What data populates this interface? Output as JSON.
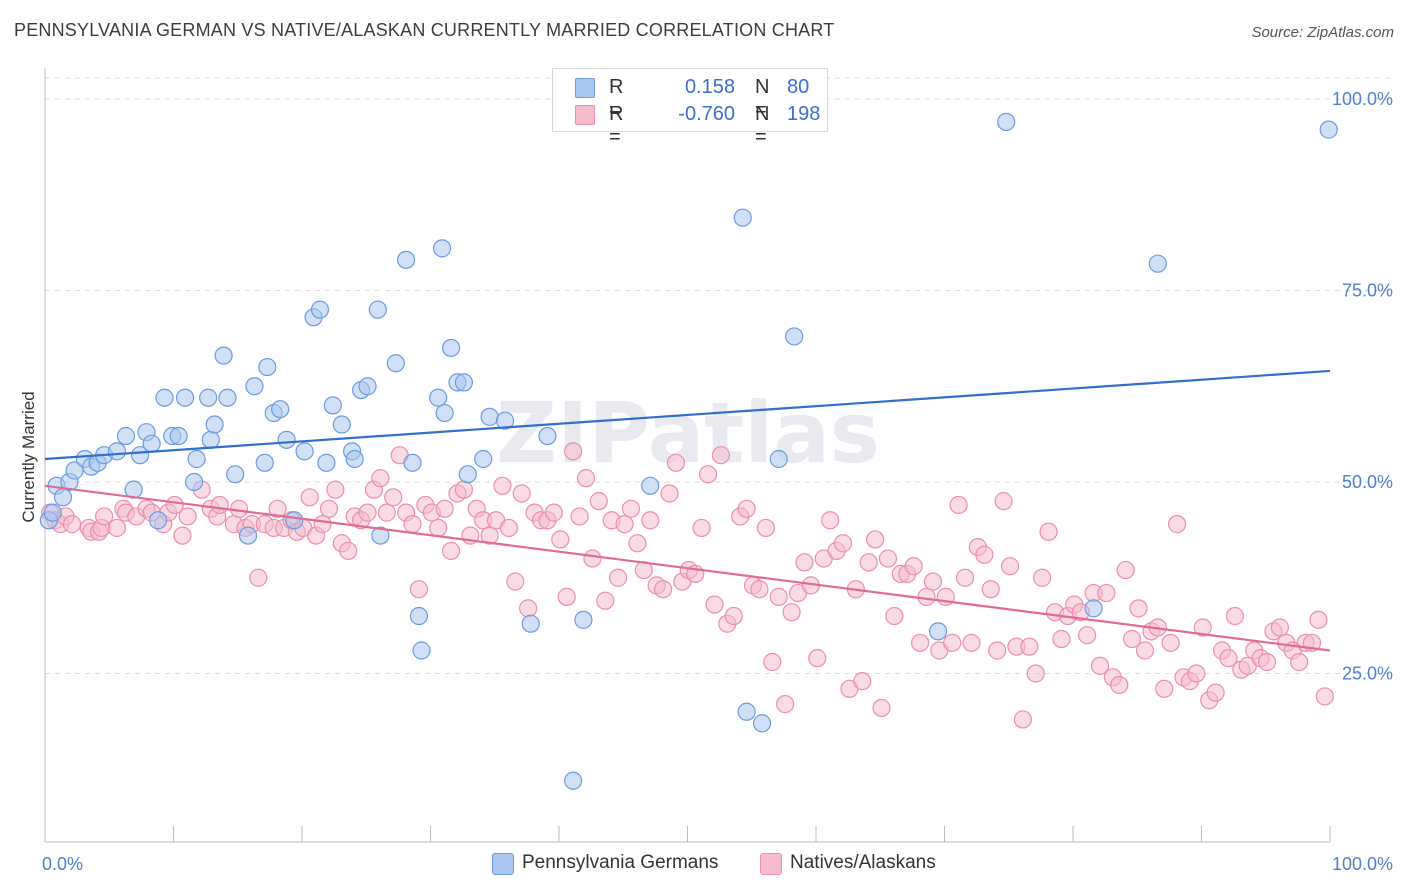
{
  "title": "PENNSYLVANIA GERMAN VS NATIVE/ALASKAN CURRENTLY MARRIED CORRELATION CHART",
  "source": "Source: ZipAtlas.com",
  "watermark": "ZIPatlas",
  "legend": {
    "series1": {
      "r_label": "R =",
      "r_value": "0.158",
      "n_label": "N =",
      "n_value": "80"
    },
    "series2": {
      "r_label": "R =",
      "r_value": "-0.760",
      "n_label": "N =",
      "n_value": "198"
    }
  },
  "bottom_legend": {
    "series1": "Pennsylvania Germans",
    "series2": "Natives/Alaskans"
  },
  "colors": {
    "blue_fill": "#aac6ef",
    "blue_stroke": "#6b9be0",
    "blue_line": "#2f6fce",
    "pink_fill": "#f6bccd",
    "pink_stroke": "#ec8fab",
    "pink_line": "#e26a94",
    "tick_text": "#4f7fcf"
  },
  "chart_data": {
    "type": "scatter",
    "title": "PENNSYLVANIA GERMAN VS NATIVE/ALASKAN CURRENTLY MARRIED CORRELATION CHART",
    "xlabel": "",
    "ylabel": "Currently Married",
    "xlim": [
      0,
      100
    ],
    "ylim": [
      3,
      103
    ],
    "x_tick_labels": [
      "0.0%",
      "100.0%"
    ],
    "y_ticks": [
      25,
      50,
      75,
      100
    ],
    "y_tick_labels": [
      "25.0%",
      "50.0%",
      "75.0%",
      "100.0%"
    ],
    "grid": "horizontal dashed",
    "series": [
      {
        "name": "Pennsylvania Germans",
        "color": "#aac6ef",
        "trend": {
          "x": [
            0,
            100
          ],
          "y": [
            53,
            64.5
          ]
        },
        "points": [
          [
            0.3,
            45
          ],
          [
            0.6,
            46
          ],
          [
            0.9,
            49.5
          ],
          [
            1.4,
            48
          ],
          [
            1.9,
            50
          ],
          [
            2.3,
            51.5
          ],
          [
            3.1,
            53
          ],
          [
            3.6,
            52
          ],
          [
            4.1,
            52.5
          ],
          [
            4.6,
            53.5
          ],
          [
            5.6,
            54
          ],
          [
            6.3,
            56
          ],
          [
            6.9,
            49
          ],
          [
            7.4,
            53.5
          ],
          [
            7.9,
            56.5
          ],
          [
            8.3,
            55
          ],
          [
            8.8,
            45
          ],
          [
            9.3,
            61
          ],
          [
            9.9,
            56
          ],
          [
            10.4,
            56
          ],
          [
            10.9,
            61
          ],
          [
            11.6,
            50
          ],
          [
            11.8,
            53
          ],
          [
            12.7,
            61
          ],
          [
            12.9,
            55.5
          ],
          [
            13.2,
            57.5
          ],
          [
            13.9,
            66.5
          ],
          [
            14.2,
            61
          ],
          [
            14.8,
            51
          ],
          [
            15.8,
            43
          ],
          [
            16.3,
            62.5
          ],
          [
            17.1,
            52.5
          ],
          [
            17.3,
            65
          ],
          [
            17.8,
            59
          ],
          [
            18.3,
            59.5
          ],
          [
            18.8,
            55.5
          ],
          [
            19.4,
            45
          ],
          [
            20.2,
            54
          ],
          [
            20.9,
            71.5
          ],
          [
            21.4,
            72.5
          ],
          [
            21.9,
            52.5
          ],
          [
            22.4,
            60
          ],
          [
            23.1,
            57.5
          ],
          [
            23.9,
            54
          ],
          [
            24.1,
            53
          ],
          [
            24.6,
            62
          ],
          [
            25.1,
            62.5
          ],
          [
            25.9,
            72.5
          ],
          [
            26.1,
            43
          ],
          [
            27.3,
            65.5
          ],
          [
            28.1,
            79
          ],
          [
            28.6,
            52.5
          ],
          [
            29.1,
            32.5
          ],
          [
            29.3,
            28
          ],
          [
            30.6,
            61
          ],
          [
            30.9,
            80.5
          ],
          [
            31.1,
            59
          ],
          [
            31.6,
            67.5
          ],
          [
            32.1,
            63
          ],
          [
            32.6,
            63
          ],
          [
            32.9,
            51
          ],
          [
            34.1,
            53
          ],
          [
            34.6,
            58.5
          ],
          [
            35.8,
            58
          ],
          [
            37.8,
            31.5
          ],
          [
            39.1,
            56
          ],
          [
            41.1,
            11
          ],
          [
            41.9,
            32
          ],
          [
            47.1,
            49.5
          ],
          [
            54.3,
            84.5
          ],
          [
            54.6,
            20
          ],
          [
            55.8,
            18.5
          ],
          [
            57.1,
            53
          ],
          [
            58.3,
            69
          ],
          [
            69.5,
            30.5
          ],
          [
            74.8,
            97
          ],
          [
            81.6,
            33.5
          ],
          [
            86.6,
            78.5
          ],
          [
            99.9,
            96
          ]
        ]
      },
      {
        "name": "Natives/Alaskans",
        "color": "#f6bccd",
        "trend": {
          "x": [
            0,
            100
          ],
          "y": [
            49.5,
            28
          ]
        },
        "points": [
          [
            0.4,
            46
          ],
          [
            0.8,
            45
          ],
          [
            1.2,
            44.5
          ],
          [
            1.6,
            45.5
          ],
          [
            2.1,
            44.5
          ],
          [
            3.4,
            44
          ],
          [
            3.6,
            43.5
          ],
          [
            4.2,
            43.5
          ],
          [
            4.4,
            44
          ],
          [
            4.6,
            45.5
          ],
          [
            5.6,
            44
          ],
          [
            6.1,
            46.5
          ],
          [
            6.3,
            46
          ],
          [
            7.1,
            45.5
          ],
          [
            7.9,
            46.5
          ],
          [
            8.3,
            46
          ],
          [
            9.2,
            44.5
          ],
          [
            9.6,
            46
          ],
          [
            10.1,
            47
          ],
          [
            10.7,
            43
          ],
          [
            11.1,
            45.5
          ],
          [
            12.2,
            49
          ],
          [
            12.9,
            46.5
          ],
          [
            13.4,
            45.5
          ],
          [
            13.6,
            47
          ],
          [
            14.7,
            44.5
          ],
          [
            15.1,
            46.5
          ],
          [
            15.6,
            44
          ],
          [
            16.1,
            44.5
          ],
          [
            16.6,
            37.5
          ],
          [
            17.1,
            44.5
          ],
          [
            17.8,
            44
          ],
          [
            18.1,
            46.5
          ],
          [
            18.6,
            44
          ],
          [
            19.2,
            45
          ],
          [
            19.6,
            43.5
          ],
          [
            20.1,
            44
          ],
          [
            20.6,
            48
          ],
          [
            21.1,
            43
          ],
          [
            21.6,
            44.5
          ],
          [
            22.1,
            46.5
          ],
          [
            22.6,
            49
          ],
          [
            23.1,
            42
          ],
          [
            23.6,
            41
          ],
          [
            24.1,
            45.5
          ],
          [
            24.6,
            45
          ],
          [
            25.1,
            46
          ],
          [
            25.6,
            49
          ],
          [
            26.1,
            50.5
          ],
          [
            26.6,
            46
          ],
          [
            27.1,
            48
          ],
          [
            27.6,
            53.5
          ],
          [
            28.1,
            46
          ],
          [
            28.6,
            44.5
          ],
          [
            29.1,
            36
          ],
          [
            29.6,
            47
          ],
          [
            30.1,
            46
          ],
          [
            30.6,
            44
          ],
          [
            31.1,
            46.5
          ],
          [
            31.6,
            41
          ],
          [
            32.1,
            48.5
          ],
          [
            32.6,
            49
          ],
          [
            33.1,
            43
          ],
          [
            33.6,
            46.5
          ],
          [
            34.1,
            45
          ],
          [
            34.6,
            43
          ],
          [
            35.1,
            45
          ],
          [
            35.6,
            49.5
          ],
          [
            36.1,
            44
          ],
          [
            36.6,
            37
          ],
          [
            37.1,
            48.5
          ],
          [
            37.6,
            33.5
          ],
          [
            38.1,
            46
          ],
          [
            38.6,
            45
          ],
          [
            39.1,
            45
          ],
          [
            39.6,
            46
          ],
          [
            40.1,
            42.5
          ],
          [
            40.6,
            35
          ],
          [
            41.1,
            54
          ],
          [
            41.6,
            45.5
          ],
          [
            42.1,
            50.5
          ],
          [
            42.6,
            40
          ],
          [
            43.1,
            47.5
          ],
          [
            43.6,
            34.5
          ],
          [
            44.1,
            45
          ],
          [
            44.6,
            37.5
          ],
          [
            45.1,
            44.5
          ],
          [
            45.6,
            46.5
          ],
          [
            46.1,
            42
          ],
          [
            46.6,
            38.5
          ],
          [
            47.1,
            45
          ],
          [
            47.6,
            36.5
          ],
          [
            48.1,
            36
          ],
          [
            48.6,
            48.5
          ],
          [
            49.1,
            52.5
          ],
          [
            49.6,
            37
          ],
          [
            50.1,
            38.5
          ],
          [
            50.6,
            38
          ],
          [
            51.1,
            44
          ],
          [
            51.6,
            51
          ],
          [
            52.1,
            34
          ],
          [
            52.6,
            53.5
          ],
          [
            53.1,
            31.5
          ],
          [
            53.6,
            32.5
          ],
          [
            54.1,
            45.5
          ],
          [
            54.6,
            46.5
          ],
          [
            55.1,
            36.5
          ],
          [
            55.6,
            36
          ],
          [
            56.1,
            44
          ],
          [
            56.6,
            26.5
          ],
          [
            57.1,
            35
          ],
          [
            57.6,
            21
          ],
          [
            58.1,
            33
          ],
          [
            58.6,
            35.5
          ],
          [
            59.1,
            39.5
          ],
          [
            59.6,
            36.5
          ],
          [
            60.1,
            27
          ],
          [
            60.6,
            40
          ],
          [
            61.1,
            45
          ],
          [
            61.6,
            41
          ],
          [
            62.1,
            42
          ],
          [
            62.6,
            23
          ],
          [
            63.1,
            36
          ],
          [
            63.6,
            24
          ],
          [
            64.1,
            39.5
          ],
          [
            64.6,
            42.5
          ],
          [
            65.1,
            20.5
          ],
          [
            65.6,
            40
          ],
          [
            66.1,
            32.5
          ],
          [
            66.6,
            38
          ],
          [
            67.1,
            38
          ],
          [
            67.6,
            39
          ],
          [
            68.1,
            29
          ],
          [
            68.6,
            35
          ],
          [
            69.1,
            37
          ],
          [
            69.6,
            28
          ],
          [
            70.1,
            35
          ],
          [
            70.6,
            29
          ],
          [
            71.1,
            47
          ],
          [
            71.6,
            37.5
          ],
          [
            72.1,
            29
          ],
          [
            72.6,
            41.5
          ],
          [
            73.1,
            40.5
          ],
          [
            73.6,
            36
          ],
          [
            74.1,
            28
          ],
          [
            74.6,
            47.5
          ],
          [
            75.1,
            39
          ],
          [
            75.6,
            28.5
          ],
          [
            76.1,
            19
          ],
          [
            76.6,
            28.5
          ],
          [
            77.1,
            25
          ],
          [
            77.6,
            37.5
          ],
          [
            78.1,
            43.5
          ],
          [
            78.6,
            33
          ],
          [
            79.1,
            29.5
          ],
          [
            79.6,
            32.5
          ],
          [
            80.1,
            34
          ],
          [
            80.6,
            33
          ],
          [
            81.1,
            30
          ],
          [
            81.6,
            35.5
          ],
          [
            82.1,
            26
          ],
          [
            82.6,
            35.5
          ],
          [
            83.1,
            24.5
          ],
          [
            83.6,
            23.5
          ],
          [
            84.1,
            38.5
          ],
          [
            84.6,
            29.5
          ],
          [
            85.1,
            33.5
          ],
          [
            85.6,
            28
          ],
          [
            86.1,
            30.5
          ],
          [
            86.6,
            31
          ],
          [
            87.1,
            23
          ],
          [
            87.6,
            29
          ],
          [
            88.1,
            44.5
          ],
          [
            88.6,
            24.5
          ],
          [
            89.1,
            24
          ],
          [
            89.6,
            25
          ],
          [
            90.1,
            31
          ],
          [
            90.6,
            21.5
          ],
          [
            91.1,
            22.5
          ],
          [
            91.6,
            28
          ],
          [
            92.1,
            27
          ],
          [
            92.6,
            32.5
          ],
          [
            93.1,
            25.5
          ],
          [
            93.6,
            26
          ],
          [
            94.1,
            28
          ],
          [
            94.6,
            27
          ],
          [
            95.1,
            26.5
          ],
          [
            95.6,
            30.5
          ],
          [
            96.1,
            31
          ],
          [
            96.6,
            29
          ],
          [
            97.1,
            28
          ],
          [
            97.6,
            26.5
          ],
          [
            98.1,
            29
          ],
          [
            98.6,
            29
          ],
          [
            99.1,
            32
          ],
          [
            99.6,
            22
          ]
        ]
      }
    ]
  }
}
